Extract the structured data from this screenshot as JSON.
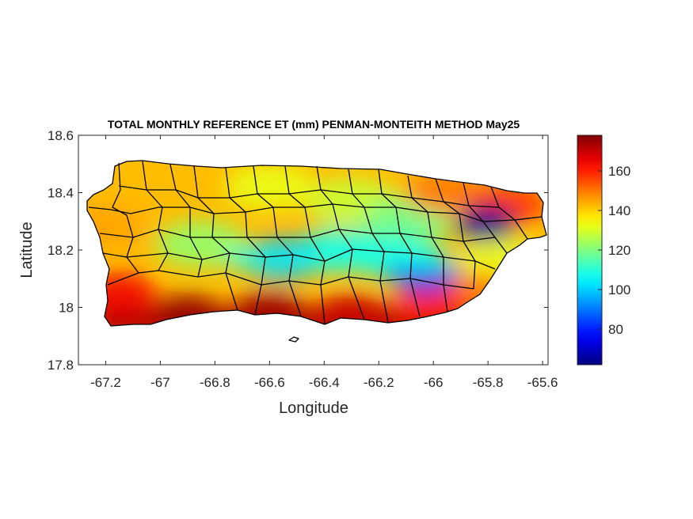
{
  "chart_data": {
    "type": "heatmap",
    "title": "TOTAL MONTHLY REFERENCE ET (mm) PENMAN-MONTEITH METHOD May25",
    "xlabel": "Longitude",
    "ylabel": "Latitude",
    "xlim": [
      -67.3,
      -65.58
    ],
    "ylim": [
      17.8,
      18.6
    ],
    "xticks": [
      "-67.2",
      "-67",
      "-66.8",
      "-66.6",
      "-66.4",
      "-66.2",
      "-66",
      "-65.8",
      "-65.6"
    ],
    "yticks": [
      "17.8",
      "18",
      "18.2",
      "18.4",
      "18.6"
    ],
    "colorbar": {
      "range": [
        62,
        178
      ],
      "ticks": [
        "80",
        "100",
        "120",
        "140",
        "160"
      ],
      "colormap": "jet"
    },
    "hotspots": [
      {
        "lon": -65.81,
        "lat": 18.29,
        "value": 65
      },
      {
        "lon": -66.04,
        "lat": 18.12,
        "value": 82
      },
      {
        "lon": -66.55,
        "lat": 18.17,
        "value": 95
      },
      {
        "lon": -66.35,
        "lat": 18.2,
        "value": 108
      },
      {
        "lon": -66.15,
        "lat": 18.18,
        "value": 110
      },
      {
        "lon": -66.85,
        "lat": 18.22,
        "value": 122
      },
      {
        "lon": -66.3,
        "lat": 18.37,
        "value": 128
      },
      {
        "lon": -65.95,
        "lat": 18.4,
        "value": 150
      },
      {
        "lon": -65.72,
        "lat": 18.36,
        "value": 158
      },
      {
        "lon": -67.2,
        "lat": 18.28,
        "value": 145
      },
      {
        "lon": -67.15,
        "lat": 18.05,
        "value": 165
      },
      {
        "lon": -66.9,
        "lat": 17.98,
        "value": 176
      },
      {
        "lon": -66.6,
        "lat": 17.99,
        "value": 175
      },
      {
        "lon": -66.3,
        "lat": 17.98,
        "value": 170
      },
      {
        "lon": -66.0,
        "lat": 18.0,
        "value": 160
      },
      {
        "lon": -65.85,
        "lat": 18.05,
        "value": 150
      },
      {
        "lon": -65.75,
        "lat": 18.16,
        "value": 132
      },
      {
        "lon": -66.1,
        "lat": 18.3,
        "value": 118
      },
      {
        "lon": -66.6,
        "lat": 18.42,
        "value": 132
      }
    ]
  }
}
